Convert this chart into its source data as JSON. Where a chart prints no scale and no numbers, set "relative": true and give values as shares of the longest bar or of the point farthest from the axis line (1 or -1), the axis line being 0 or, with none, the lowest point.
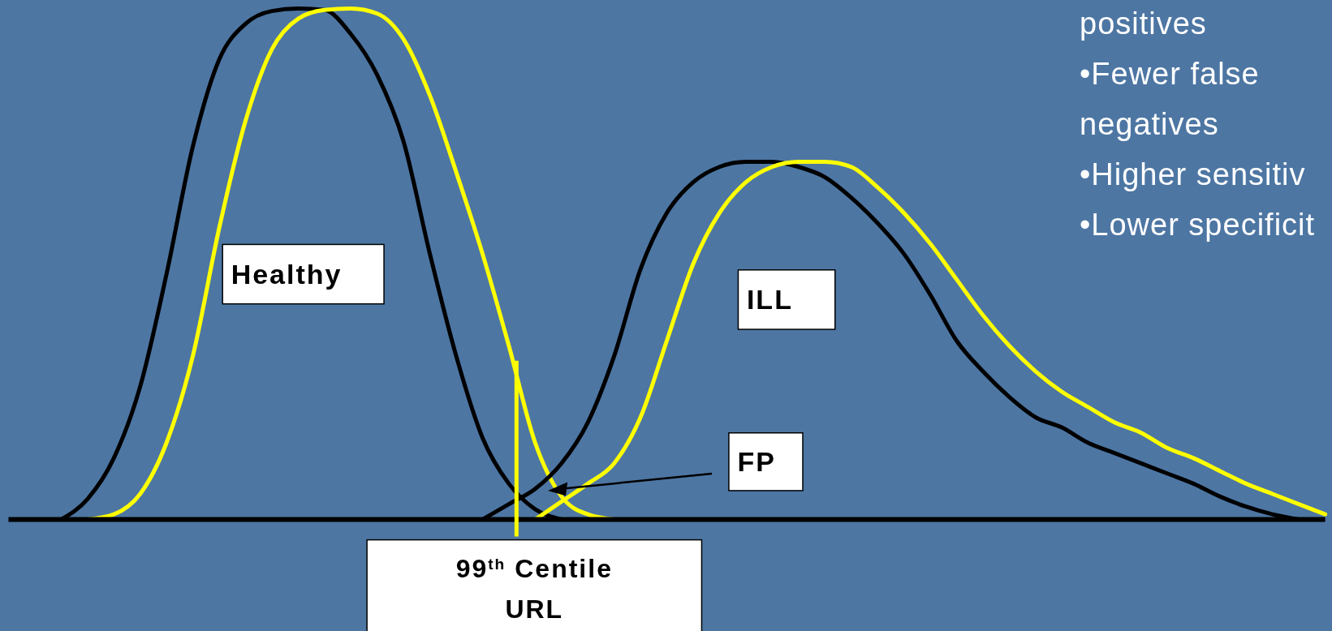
{
  "chart_data": {
    "type": "line",
    "relative": true,
    "categories": [
      null,
      null,
      null,
      null,
      null,
      null,
      null,
      null,
      null,
      null,
      null,
      null,
      null,
      null,
      null,
      null,
      null,
      null,
      null,
      null,
      null,
      null,
      null,
      null,
      null,
      null,
      null,
      null,
      null,
      null,
      null,
      null,
      null,
      null,
      null,
      null,
      null,
      null,
      null,
      null,
      null,
      null,
      null,
      null,
      null,
      null,
      null,
      null,
      null,
      null,
      null
    ],
    "series": [
      {
        "color": "#000000",
        "values": [
          null,
          null,
          0,
          0.04,
          0.12,
          0.26,
          0.48,
          0.73,
          0.9,
          0.97,
          0.995,
          1,
          0.997,
          0.95,
          0.87,
          0.74,
          0.52,
          0.32,
          0.16,
          0.07,
          0.02,
          0,
          null,
          null,
          null,
          null,
          null,
          null,
          null,
          null,
          null,
          null,
          null,
          null,
          null,
          null,
          null,
          null,
          null,
          null,
          null,
          null,
          null,
          null,
          null,
          null,
          null,
          null,
          null,
          null,
          null
        ]
      },
      {
        "color": "#ffff00",
        "values": [
          null,
          null,
          null,
          0,
          0.01,
          0.05,
          0.15,
          0.32,
          0.57,
          0.78,
          0.92,
          0.98,
          0.997,
          1,
          0.99,
          0.94,
          0.83,
          0.68,
          0.52,
          0.34,
          0.15,
          0.045,
          0.01,
          0,
          null,
          null,
          null,
          null,
          null,
          null,
          null,
          null,
          null,
          null,
          null,
          null,
          null,
          null,
          null,
          null,
          null,
          null,
          null,
          null,
          null,
          null,
          null,
          null,
          null,
          null,
          null
        ]
      },
      {
        "color": "#000000",
        "values": [
          null,
          null,
          null,
          null,
          null,
          null,
          null,
          null,
          null,
          null,
          null,
          null,
          null,
          null,
          null,
          null,
          null,
          null,
          0,
          0.03,
          0.06,
          0.11,
          0.19,
          0.32,
          0.49,
          0.6,
          0.66,
          0.69,
          0.7,
          0.7,
          0.69,
          0.67,
          0.63,
          0.58,
          0.52,
          0.44,
          0.35,
          0.29,
          0.24,
          0.2,
          0.18,
          0.15,
          0.13,
          0.11,
          0.09,
          0.07,
          0.045,
          0.025,
          0.01,
          0,
          null
        ]
      },
      {
        "color": "#ffff00",
        "values": [
          null,
          null,
          null,
          null,
          null,
          null,
          null,
          null,
          null,
          null,
          null,
          null,
          null,
          null,
          null,
          null,
          null,
          null,
          null,
          null,
          0,
          0.035,
          0.07,
          0.11,
          0.2,
          0.35,
          0.5,
          0.6,
          0.66,
          0.69,
          0.7,
          0.7,
          0.69,
          0.65,
          0.6,
          0.54,
          0.47,
          0.4,
          0.34,
          0.29,
          0.25,
          0.22,
          0.19,
          0.17,
          0.14,
          0.12,
          0.095,
          0.07,
          0.05,
          0.03,
          0.01
        ]
      }
    ],
    "annotations": [
      "Healthy",
      "ILL",
      "FP",
      "99$^{th}$ Centile URL",
      "positives",
      "•Fewer false negatives",
      "•Higher sensitiv",
      "•Lower specificit"
    ]
  }
}
